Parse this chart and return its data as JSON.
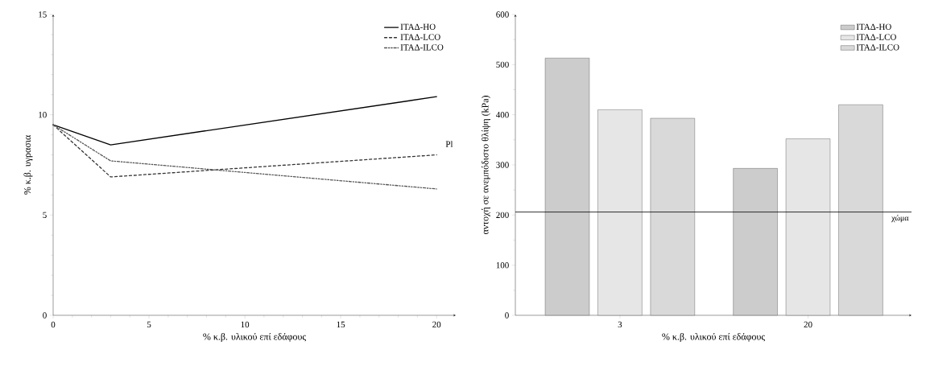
{
  "chart_data": [
    {
      "type": "line",
      "xlabel": "% κ.β. υλικού επί εδάφους",
      "ylabel": "% κ.β. υγρασια",
      "x": [
        0,
        3,
        20
      ],
      "series": [
        {
          "name": "ΙΤΑΔ-HO",
          "color": "#000000",
          "line_style": "solid",
          "values": [
            9.5,
            8.5,
            10.9
          ]
        },
        {
          "name": "ΙΤΑΔ-LCO",
          "color": "#333333",
          "line_style": "dashed",
          "values": [
            9.5,
            6.9,
            8.0
          ]
        },
        {
          "name": "ΙΤΑΔ-ILCO",
          "color": "#555555",
          "line_style": "dotted",
          "values": [
            9.5,
            7.7,
            6.3
          ]
        }
      ],
      "annotations": [
        "Pl"
      ],
      "xlim": [
        0,
        21
      ],
      "xticks": [
        0,
        5,
        10,
        15,
        20
      ],
      "ylim": [
        0,
        15
      ],
      "yticks": [
        0,
        5,
        10,
        15
      ],
      "legend": "top right",
      "grid": false,
      "marker": "none"
    },
    {
      "type": "bar",
      "xlabel": "% κ.β. υλικού επί εδάφους",
      "ylabel": "αντοχή σε ανεμπόδιστο θλίψη (kPa)",
      "categories": [
        "3",
        "20"
      ],
      "series": [
        {
          "name": "ΙΤΑΔ-HO",
          "color": "#cccccc",
          "values": [
            513,
            293
          ]
        },
        {
          "name": "ΙΤΑΔ-LCO",
          "color": "#e6e6e6",
          "values": [
            410,
            352
          ]
        },
        {
          "name": "ΙΤΑΔ-ILCO",
          "color": "#d9d9d9",
          "values": [
            393,
            420
          ]
        }
      ],
      "ref_lines": [
        {
          "axis": "y",
          "value": 206,
          "label": "χώμα"
        }
      ],
      "ylim": [
        0,
        600
      ],
      "yticks": [
        0,
        100,
        200,
        300,
        400,
        500,
        600
      ],
      "legend": "top right",
      "grid": false
    }
  ]
}
